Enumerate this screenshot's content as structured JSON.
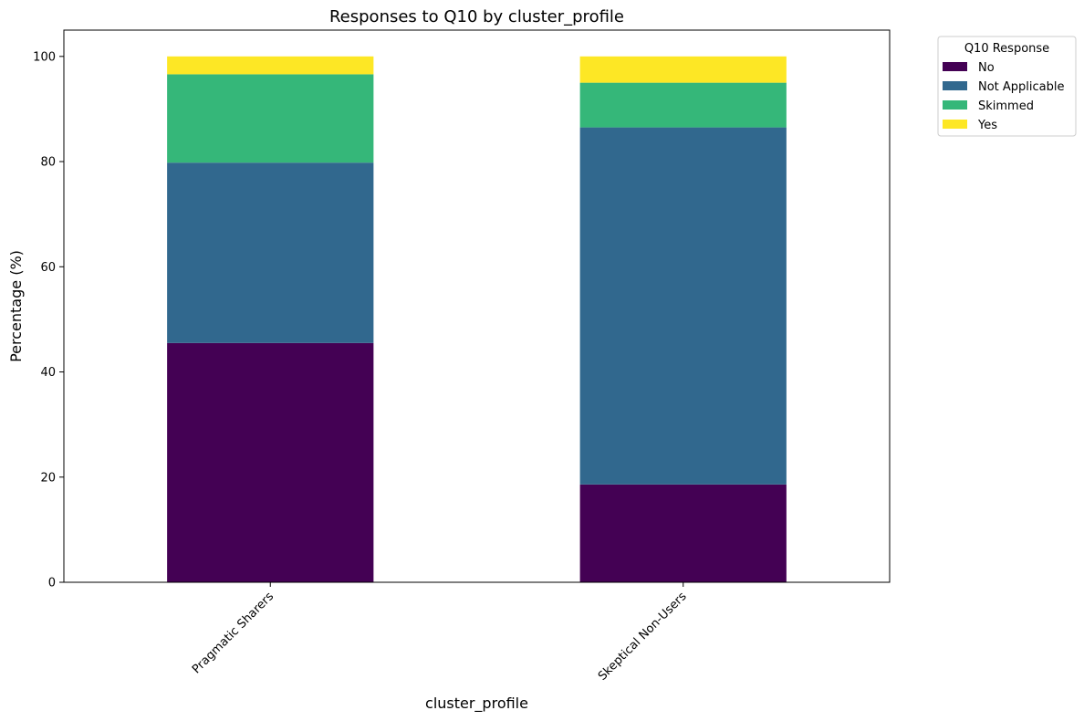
{
  "chart_data": {
    "type": "bar",
    "stacked": true,
    "title": "Responses to Q10 by cluster_profile",
    "xlabel": "cluster_profile",
    "ylabel": "Percentage (%)",
    "ylim": [
      0,
      105
    ],
    "yticks": [
      0,
      20,
      40,
      60,
      80,
      100
    ],
    "categories": [
      "Pragmatic Sharers",
      "Skeptical Non-Users"
    ],
    "series": [
      {
        "name": "No",
        "color": "#440154",
        "values": [
          45.5,
          18.6
        ]
      },
      {
        "name": "Not Applicable",
        "color": "#31688e",
        "values": [
          34.3,
          67.9
        ]
      },
      {
        "name": "Skimmed",
        "color": "#35b779",
        "values": [
          16.8,
          8.5
        ]
      },
      {
        "name": "Yes",
        "color": "#fde725",
        "values": [
          3.4,
          5.0
        ]
      }
    ],
    "legend": {
      "title": "Q10 Response",
      "placement": "outside-top-right"
    },
    "grid": false
  }
}
